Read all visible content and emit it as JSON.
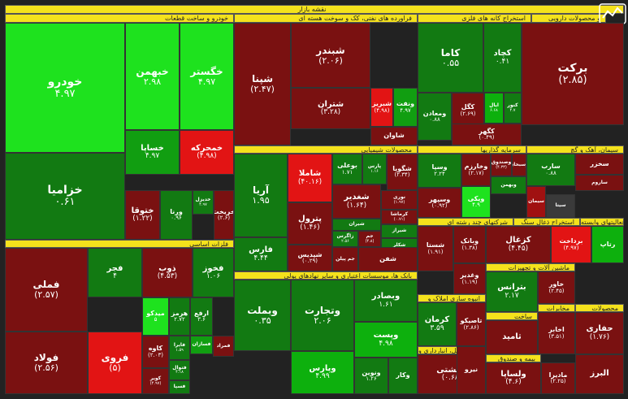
{
  "chart_data": {
    "type": "heatmap",
    "title": "نقشه بازار",
    "sectors": [
      "خودرو و ساخت قطعات",
      "فراورده های نفتی، کک و سوخت هسته ای",
      "استخراج کانه های فلزی",
      "و محصولات دارویی",
      "فلزات اساسی",
      "محصولات شیمیایی",
      "سرمایه گذاریها",
      "سیمان، آهک و گچ",
      "بانک ها، موسسات اعتباری و سایر نهادهای پولی",
      "شرکتهای چند رشته ای",
      "استخراج ذغال سنگ",
      "رایانه و فعالیتهای وابسته",
      "ماشین آلات و تجهیزات",
      "محصولات",
      "انبوه سازی املاک و",
      "مخابرات",
      "بیمه و صندوق",
      "حمل و نقل، انبارداری و",
      "ساخت"
    ],
    "tiles": [
      {
        "name": "خودرو",
        "change": "۴.۹۷",
        "color": "g4"
      },
      {
        "name": "خبهمن",
        "change": "۲.۹۸",
        "color": "g4"
      },
      {
        "name": "خگستر",
        "change": "۴.۹۷",
        "color": "g4"
      },
      {
        "name": "خزامیا",
        "change": "۰.۶۱",
        "color": "g1"
      },
      {
        "name": "خساپا",
        "change": "۴.۹۷",
        "color": "g2"
      },
      {
        "name": "خمحرکه",
        "change": "(۴.۹۸)",
        "color": "r3"
      },
      {
        "name": "ختوقا",
        "change": "(۱.۲۲)",
        "color": "r1"
      },
      {
        "name": "ورنا",
        "change": "۰.۹۶",
        "color": "g1"
      },
      {
        "name": "خدیزل",
        "change": "۴.۹۷",
        "color": "g1"
      },
      {
        "name": "خریخت",
        "change": "(۲.۶)",
        "color": "r1"
      },
      {
        "name": "شپنا",
        "change": "(۲.۴۷)",
        "color": "r1"
      },
      {
        "name": "شبندر",
        "change": "(۲.۰۶)",
        "color": "r1"
      },
      {
        "name": "شتران",
        "change": "(۳.۲۸)",
        "color": "r1"
      },
      {
        "name": "شبریز",
        "change": "(۴.۹۸)",
        "color": "r3"
      },
      {
        "name": "ونفت",
        "change": "۴.۹۷",
        "color": "g2"
      },
      {
        "name": "شاوان",
        "change": "",
        "color": "r1"
      },
      {
        "name": "کاما",
        "change": "۰.۵۵",
        "color": "g1"
      },
      {
        "name": "کچاد",
        "change": "۰.۴۱",
        "color": "g1"
      },
      {
        "name": "کگل",
        "change": "(۲.۶۹)",
        "color": "r1"
      },
      {
        "name": "ومعادن",
        "change": "۰.۸۸",
        "color": "g1"
      },
      {
        "name": "ایال",
        "change": "۶.۶۸",
        "color": "g3"
      },
      {
        "name": "کنور",
        "change": "۴.۷",
        "color": "g1"
      },
      {
        "name": "کگهر",
        "change": "(۰.۴۹)",
        "color": "r1"
      },
      {
        "name": "برکت",
        "change": "(۲.۸۵)",
        "color": "r1"
      },
      {
        "name": "فملی",
        "change": "(۲.۵۷)",
        "color": "r1"
      },
      {
        "name": "فجر",
        "change": "۴",
        "color": "g1"
      },
      {
        "name": "ذوب",
        "change": "(۴.۵۳)",
        "color": "r1"
      },
      {
        "name": "فخوز",
        "change": "۱.۰۶",
        "color": "g1"
      },
      {
        "name": "میدکو",
        "change": "۵",
        "color": "g4"
      },
      {
        "name": "هرمز",
        "change": "۲.۷۲",
        "color": "g1"
      },
      {
        "name": "ارفع",
        "change": "۳.۶",
        "color": "g1"
      },
      {
        "name": "فولاد",
        "change": "(۲.۵۶)",
        "color": "r1"
      },
      {
        "name": "فروی",
        "change": "(۵)",
        "color": "r3"
      },
      {
        "name": "کاوه",
        "change": "(۲.۰۳)",
        "color": "r1"
      },
      {
        "name": "فایرا",
        "change": "۱.۵۹",
        "color": "g1"
      },
      {
        "name": "فسازان",
        "change": "",
        "color": "g2"
      },
      {
        "name": "فمراد",
        "change": "",
        "color": "r1"
      },
      {
        "name": "کویر",
        "change": "(۴.۹۷)",
        "color": "r1"
      },
      {
        "name": "فتوال",
        "change": "۴.۱۸",
        "color": "g1"
      },
      {
        "name": "فسپا",
        "change": "",
        "color": "g1"
      },
      {
        "name": "آریا",
        "change": "۱.۹۵",
        "color": "g1"
      },
      {
        "name": "شاملا",
        "change": "(۴۰.۱۶)",
        "color": "r3"
      },
      {
        "name": "بوعلی",
        "change": "۱.۷۱",
        "color": "g1"
      },
      {
        "name": "پارس",
        "change": "۱.۱۶",
        "color": "g1"
      },
      {
        "name": "شگویا",
        "change": "(۲.۳۴)",
        "color": "r1"
      },
      {
        "name": "پترول",
        "change": "(۱.۴۶)",
        "color": "r1"
      },
      {
        "name": "شغدیر",
        "change": "(۱.۶۴)",
        "color": "r1"
      },
      {
        "name": "نوری",
        "change": "(۱.۹۷)",
        "color": "r1"
      },
      {
        "name": "کرماشا",
        "change": "(۰.۷۱)",
        "color": "r1"
      },
      {
        "name": "شیراز",
        "change": "",
        "color": "g1"
      },
      {
        "name": "شیران",
        "change": "",
        "color": "g1"
      },
      {
        "name": "فارس",
        "change": "۴.۴۴",
        "color": "g1"
      },
      {
        "name": "شپدیس",
        "change": "(۰.۲۹)",
        "color": "r1"
      },
      {
        "name": "زاگرس",
        "change": "۲.۵۶",
        "color": "g1"
      },
      {
        "name": "جم",
        "change": "(۴.۸)",
        "color": "r1"
      },
      {
        "name": "جم پیلن",
        "change": "",
        "color": "r1"
      },
      {
        "name": "شکلر",
        "change": "",
        "color": "g1"
      },
      {
        "name": "شفن",
        "change": "",
        "color": "r1"
      },
      {
        "name": "وسپا",
        "change": "۲.۲۴",
        "color": "g1"
      },
      {
        "name": "وخارزم",
        "change": "(۲.۱۷)",
        "color": "r1"
      },
      {
        "name": "وصندوق",
        "change": "(۴.۳۳)",
        "color": "r1"
      },
      {
        "name": "وسبحان",
        "change": "",
        "color": "r1"
      },
      {
        "name": "وبهمن",
        "change": "",
        "color": "g1"
      },
      {
        "name": "ویکی",
        "change": "۴.۹",
        "color": "g4"
      },
      {
        "name": "وسپهر",
        "change": "(۰.۹۲)",
        "color": "r1"
      },
      {
        "name": "سارب",
        "change": "۰.۸۸",
        "color": "g1"
      },
      {
        "name": "سخزر",
        "change": "",
        "color": "r1"
      },
      {
        "name": "ساروم",
        "change": "",
        "color": "r1"
      },
      {
        "name": "سیتا",
        "change": "",
        "color": "gr"
      },
      {
        "name": "سیمان",
        "change": "",
        "color": "r2"
      },
      {
        "name": "وبملت",
        "change": "۰.۳۵",
        "color": "g1"
      },
      {
        "name": "وتجارت",
        "change": "۲.۰۶",
        "color": "g1"
      },
      {
        "name": "وبصادر",
        "change": "۱.۶۱",
        "color": "g1"
      },
      {
        "name": "وپست",
        "change": "۴.۹۸",
        "color": "g3"
      },
      {
        "name": "وپارس",
        "change": "۴.۹۹",
        "color": "g3"
      },
      {
        "name": "ونوین",
        "change": "۱.۲۶",
        "color": "g1"
      },
      {
        "name": "وکار",
        "change": "",
        "color": "g1"
      },
      {
        "name": "شستا",
        "change": "(۱.۹۱)",
        "color": "r1"
      },
      {
        "name": "وبانک",
        "change": "(۱.۳۸)",
        "color": "r1"
      },
      {
        "name": "وغدیر",
        "change": "(۱.۱۹)",
        "color": "r1"
      },
      {
        "name": "کزغال",
        "change": "(۴.۴۵)",
        "color": "r1"
      },
      {
        "name": "برداخت",
        "change": "(۴.۹۷)",
        "color": "r3"
      },
      {
        "name": "رتاپ",
        "change": "",
        "color": "g3"
      },
      {
        "name": "کرمان",
        "change": "۳.۵۹",
        "color": "g1"
      },
      {
        "name": "تاصیکو",
        "change": "(۲.۸۶)",
        "color": "r1"
      },
      {
        "name": "ثامید",
        "change": "",
        "color": "r1"
      },
      {
        "name": "حکشتی",
        "change": "(۰.۶۸)",
        "color": "r1"
      },
      {
        "name": "بترانس",
        "change": "۲.۱۷",
        "color": "g1"
      },
      {
        "name": "ولساپا",
        "change": "(۴.۶)",
        "color": "r1"
      },
      {
        "name": "خاور",
        "change": "(۲.۴۵)",
        "color": "r1"
      },
      {
        "name": "اخابر",
        "change": "(۳.۵۱)",
        "color": "r1"
      },
      {
        "name": "ماديرا",
        "change": "(۲.۲۵)",
        "color": "r1"
      },
      {
        "name": "حفاری",
        "change": "(۱.۷۶)",
        "color": "r1"
      },
      {
        "name": "البرز",
        "change": "",
        "color": "r1"
      },
      {
        "name": "نیرو",
        "change": "",
        "color": "r1"
      },
      {
        "name": "پاسا",
        "change": "",
        "color": "r1"
      },
      {
        "name": "تورژن",
        "change": "",
        "color": "r1"
      }
    ]
  }
}
